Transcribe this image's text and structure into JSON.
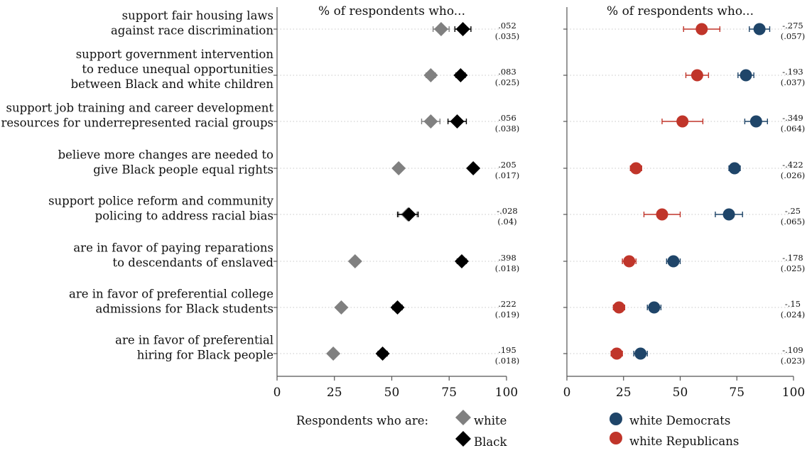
{
  "chart_data": [
    {
      "type": "scatter",
      "title": "% of respondents who...",
      "categories": [
        [
          "support fair housing laws",
          "against race discrimination"
        ],
        [
          "support government intervention",
          "to reduce unequal opportunities",
          "between Black and white children"
        ],
        [
          "support job training and career development",
          "resources for underrepresented racial groups"
        ],
        [
          "believe more changes are needed to",
          "give Black people equal rights"
        ],
        [
          "support police reform and community",
          "policing to address racial bias"
        ],
        [
          "are in favor of paying reparations",
          "to descendants of enslaved"
        ],
        [
          "are in favor of preferential college",
          "admissions for Black students"
        ],
        [
          "are in favor of preferential",
          "hiring for Black people"
        ]
      ],
      "xlim": [
        0,
        100
      ],
      "xticks": [
        "0",
        "25",
        "50",
        "75",
        "100"
      ],
      "series": [
        {
          "name": "white",
          "color": "#808080",
          "marker": "diamond",
          "values": [
            71.5,
            67,
            67,
            53,
            57,
            34,
            28,
            24.5
          ],
          "ci": [
            [
              68,
              75
            ],
            [
              65,
              69
            ],
            [
              63,
              71
            ],
            [
              51.5,
              54.5
            ],
            [
              53,
              61
            ],
            [
              32.5,
              35.5
            ],
            [
              26.5,
              29.5
            ],
            [
              23,
              26
            ]
          ]
        },
        {
          "name": "Black",
          "color": "#000000",
          "marker": "diamond",
          "values": [
            81,
            80,
            78.5,
            85.5,
            57.5,
            80.5,
            52.5,
            46
          ],
          "ci": [
            [
              77.5,
              84.5
            ],
            [
              78,
              82
            ],
            [
              74.5,
              82.5
            ],
            [
              84,
              87
            ],
            [
              52.5,
              61.5
            ],
            [
              78.5,
              82.5
            ],
            [
              50.5,
              54.5
            ],
            [
              44,
              48
            ]
          ]
        }
      ],
      "annotations": [
        [
          ".052",
          "(.035)"
        ],
        [
          ".083",
          "(.025)"
        ],
        [
          ".056",
          "(.038)"
        ],
        [
          ".205",
          "(.017)"
        ],
        [
          "-.028",
          "(.04)"
        ],
        [
          ".398",
          "(.018)"
        ],
        [
          ".222",
          "(.019)"
        ],
        [
          ".195",
          "(.018)"
        ]
      ],
      "legend": {
        "title": "Respondents who are:",
        "placement": "bottom"
      }
    },
    {
      "type": "scatter",
      "title": "% of respondents who...",
      "xlim": [
        0,
        100
      ],
      "xticks": [
        "0",
        "25",
        "50",
        "75",
        "100"
      ],
      "series": [
        {
          "name": "white Democrats",
          "color": "#1f4569",
          "marker": "circle",
          "values": [
            85,
            79,
            83.5,
            74,
            71.5,
            47,
            38.5,
            32.5
          ],
          "ci": [
            [
              80.5,
              89.5
            ],
            [
              75.5,
              82.5
            ],
            [
              78.5,
              88.5
            ],
            [
              71.5,
              76.5
            ],
            [
              65.5,
              77.5
            ],
            [
              44,
              50
            ],
            [
              35.5,
              41.5
            ],
            [
              29.5,
              35.5
            ]
          ]
        },
        {
          "name": "white Republicans",
          "color": "#c0352a",
          "marker": "circle",
          "values": [
            59.5,
            57.5,
            51,
            30.5,
            42,
            27.5,
            23,
            22
          ],
          "ci": [
            [
              51.5,
              67.5
            ],
            [
              52.5,
              62.5
            ],
            [
              42,
              60
            ],
            [
              28,
              33
            ],
            [
              34,
              50
            ],
            [
              24.5,
              30.5
            ],
            [
              20.5,
              25.5
            ],
            [
              19.5,
              24.5
            ]
          ]
        }
      ],
      "annotations": [
        [
          "-.275",
          "(.057)"
        ],
        [
          "-.193",
          "(.037)"
        ],
        [
          "-.349",
          "(.064)"
        ],
        [
          "-.422",
          "(.026)"
        ],
        [
          "-.25",
          "(.065)"
        ],
        [
          "-.178",
          "(.025)"
        ],
        [
          "-.15",
          "(.024)"
        ],
        [
          "-.109",
          "(.023)"
        ]
      ],
      "legend": {
        "placement": "bottom"
      }
    }
  ]
}
